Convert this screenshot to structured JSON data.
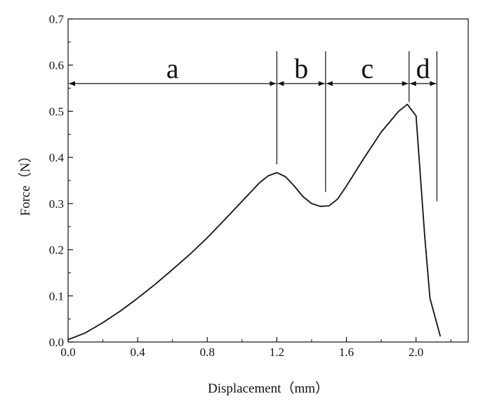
{
  "chart_data": {
    "type": "line",
    "xlabel": "Displacement（mm）",
    "ylabel": "Force（N）",
    "xlim": [
      0.0,
      2.3
    ],
    "ylim": [
      0.0,
      0.7
    ],
    "x_ticks": [
      "0.0",
      "0.4",
      "0.8",
      "1.2",
      "1.6",
      "2.0"
    ],
    "y_ticks": [
      "0.0",
      "0.1",
      "0.2",
      "0.3",
      "0.4",
      "0.5",
      "0.6",
      "0.7"
    ],
    "grid": false,
    "series": [
      {
        "name": "",
        "x": [
          0.0,
          0.1,
          0.2,
          0.3,
          0.4,
          0.5,
          0.6,
          0.7,
          0.8,
          0.9,
          1.0,
          1.1,
          1.15,
          1.2,
          1.25,
          1.3,
          1.35,
          1.4,
          1.45,
          1.5,
          1.55,
          1.6,
          1.7,
          1.8,
          1.9,
          1.95,
          2.0,
          2.05,
          2.08,
          2.14
        ],
        "y": [
          0.005,
          0.02,
          0.042,
          0.067,
          0.095,
          0.125,
          0.157,
          0.19,
          0.226,
          0.265,
          0.305,
          0.345,
          0.36,
          0.367,
          0.358,
          0.338,
          0.315,
          0.3,
          0.294,
          0.295,
          0.31,
          0.338,
          0.398,
          0.455,
          0.5,
          0.515,
          0.49,
          0.23,
          0.095,
          0.012
        ]
      }
    ],
    "regions": [
      {
        "label": "a",
        "x_start": 0.0,
        "x_end": 1.2
      },
      {
        "label": "b",
        "x_start": 1.2,
        "x_end": 1.48
      },
      {
        "label": "c",
        "x_start": 1.48,
        "x_end": 1.96
      },
      {
        "label": "d",
        "x_start": 1.96,
        "x_end": 2.12
      }
    ],
    "region_arrow_y": 0.56,
    "region_boundaries": [
      {
        "x": 1.2,
        "y_bottom": 0.385,
        "y_top": 0.63
      },
      {
        "x": 1.48,
        "y_bottom": 0.325,
        "y_top": 0.63
      },
      {
        "x": 1.96,
        "y_bottom": 0.52,
        "y_top": 0.63
      },
      {
        "x": 2.12,
        "y_bottom": 0.305,
        "y_top": 0.63
      }
    ]
  }
}
